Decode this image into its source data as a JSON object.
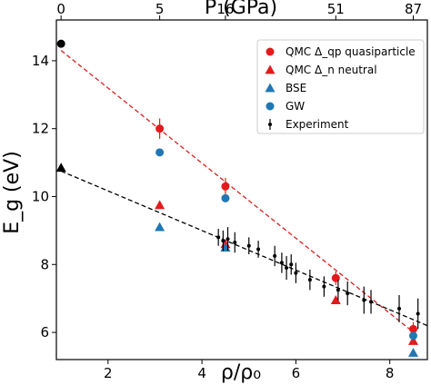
{
  "chart_data": {
    "type": "scatter",
    "xlabel": "ρ/ρ₀",
    "ylabel": "E_g (eV)",
    "xlim": [
      0.9,
      8.8
    ],
    "ylim": [
      5.2,
      15.2
    ],
    "x_ticks": [
      "2",
      "4",
      "6",
      "8"
    ],
    "x_tick_values": [
      2,
      4,
      6,
      8
    ],
    "y_ticks": [
      "6",
      "8",
      "10",
      "12",
      "14"
    ],
    "y_tick_values": [
      6,
      8,
      10,
      12,
      14
    ],
    "top_axis": {
      "label": "P (GPa)",
      "ticks": [
        {
          "label": "0",
          "x": 1.0
        },
        {
          "label": "5",
          "x": 3.1
        },
        {
          "label": "16",
          "x": 4.5
        },
        {
          "label": "51",
          "x": 6.85
        },
        {
          "label": "87",
          "x": 8.5
        }
      ]
    },
    "legend": {
      "position": "top-right",
      "entries": [
        "QMC Δ_qp quasiparticle",
        "QMC Δ_n neutral",
        "BSE",
        "GW",
        "Experiment"
      ]
    },
    "colors": {
      "red": "#e31a1c",
      "blue": "#1f77b4",
      "black": "#000000"
    },
    "series": [
      {
        "name": "QMC Δ_qp quasiparticle",
        "marker": "circle",
        "color": "#e31a1c",
        "points": [
          {
            "x": 3.1,
            "y": 12.0,
            "err": 0.3
          },
          {
            "x": 4.5,
            "y": 10.3,
            "err": 0.25
          },
          {
            "x": 6.85,
            "y": 7.6,
            "err": 0.2
          },
          {
            "x": 8.5,
            "y": 6.1,
            "err": 0.2
          }
        ]
      },
      {
        "name": "QMC Δ_n neutral",
        "marker": "triangle",
        "color": "#e31a1c",
        "points": [
          {
            "x": 3.1,
            "y": 9.75
          },
          {
            "x": 4.5,
            "y": 8.6
          },
          {
            "x": 6.85,
            "y": 6.95
          },
          {
            "x": 8.5,
            "y": 5.75
          }
        ]
      },
      {
        "name": "BSE",
        "marker": "triangle",
        "color": "#1f77b4",
        "points": [
          {
            "x": 3.1,
            "y": 9.1
          },
          {
            "x": 4.5,
            "y": 8.5
          },
          {
            "x": 8.5,
            "y": 5.4
          }
        ]
      },
      {
        "name": "GW",
        "marker": "circle",
        "color": "#1f77b4",
        "points": [
          {
            "x": 3.1,
            "y": 11.3
          },
          {
            "x": 4.5,
            "y": 9.95
          },
          {
            "x": 8.5,
            "y": 5.9
          }
        ]
      },
      {
        "name": "Experiment",
        "marker": "errorbar",
        "color": "#000000",
        "points": [
          {
            "x": 4.35,
            "y": 8.8,
            "err": 0.25
          },
          {
            "x": 4.45,
            "y": 8.7,
            "err": 0.3
          },
          {
            "x": 4.55,
            "y": 8.75,
            "err": 0.35
          },
          {
            "x": 4.7,
            "y": 8.65,
            "err": 0.3
          },
          {
            "x": 5.0,
            "y": 8.55,
            "err": 0.25
          },
          {
            "x": 5.2,
            "y": 8.45,
            "err": 0.25
          },
          {
            "x": 5.55,
            "y": 8.25,
            "err": 0.3
          },
          {
            "x": 5.7,
            "y": 8.05,
            "err": 0.3
          },
          {
            "x": 5.8,
            "y": 7.9,
            "err": 0.35
          },
          {
            "x": 5.9,
            "y": 8.0,
            "err": 0.3
          },
          {
            "x": 6.0,
            "y": 7.75,
            "err": 0.3
          },
          {
            "x": 6.3,
            "y": 7.55,
            "err": 0.3
          },
          {
            "x": 6.6,
            "y": 7.35,
            "err": 0.3
          },
          {
            "x": 6.9,
            "y": 7.25,
            "err": 0.3
          },
          {
            "x": 7.1,
            "y": 7.15,
            "err": 0.35
          },
          {
            "x": 7.45,
            "y": 6.95,
            "err": 0.4
          },
          {
            "x": 7.6,
            "y": 6.9,
            "err": 0.35
          },
          {
            "x": 8.2,
            "y": 6.7,
            "err": 0.4
          },
          {
            "x": 8.6,
            "y": 6.55,
            "err": 0.45
          }
        ]
      },
      {
        "name": "",
        "marker": "circle",
        "color": "#000000",
        "points": [
          {
            "x": 1.0,
            "y": 14.5
          }
        ]
      },
      {
        "name": "",
        "marker": "triangle",
        "color": "#000000",
        "points": [
          {
            "x": 1.0,
            "y": 10.85
          }
        ]
      }
    ],
    "fit_lines": [
      {
        "style": "dashed",
        "color": "#e31a1c",
        "x": [
          1.0,
          8.6
        ],
        "y": [
          14.3,
          5.9
        ]
      },
      {
        "style": "dashed",
        "color": "#000000",
        "x": [
          1.0,
          8.8
        ],
        "y": [
          10.75,
          6.2
        ]
      }
    ]
  }
}
